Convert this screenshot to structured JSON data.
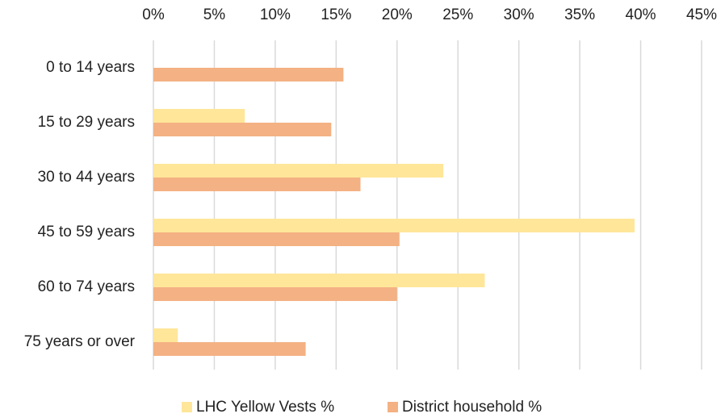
{
  "chart_data": {
    "type": "barh",
    "categories": [
      "0 to 14 years",
      "15 to 29 years",
      "30 to 44 years",
      "45 to 59 years",
      "60 to 74 years",
      "75 years or over"
    ],
    "series": [
      {
        "name": "LHC Yellow Vests %",
        "color": "#ffe699",
        "values": [
          0,
          7.5,
          23.8,
          39.5,
          27.2,
          2.0
        ]
      },
      {
        "name": "District household %",
        "color": "#f4b183",
        "values": [
          15.6,
          14.6,
          17.0,
          20.2,
          20.0,
          12.5
        ]
      }
    ],
    "xlim": [
      0,
      45
    ],
    "xticks": [
      {
        "value": 0,
        "label": "0%"
      },
      {
        "value": 5,
        "label": "5%"
      },
      {
        "value": 10,
        "label": "10%"
      },
      {
        "value": 15,
        "label": "15%"
      },
      {
        "value": 20,
        "label": "20%"
      },
      {
        "value": 25,
        "label": "25%"
      },
      {
        "value": 30,
        "label": "30%"
      },
      {
        "value": 35,
        "label": "35%"
      },
      {
        "value": 40,
        "label": "40%"
      },
      {
        "value": 45,
        "label": "45%"
      }
    ],
    "grid": true,
    "legend": "bottom"
  }
}
